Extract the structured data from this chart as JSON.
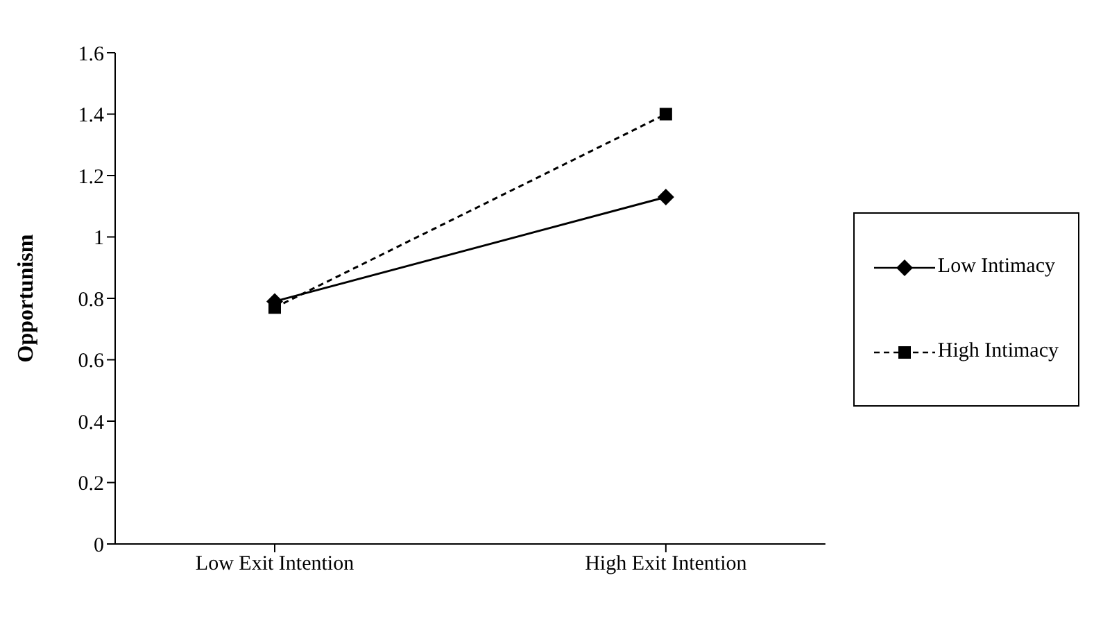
{
  "chart_data": {
    "type": "line",
    "ylabel": "Opportunism",
    "categories": [
      "Low Exit Intention",
      "High Exit Intention"
    ],
    "series": [
      {
        "name": "Low Intimacy",
        "color": "#000000",
        "values": [
          0.79,
          1.13
        ],
        "marker": "diamond",
        "line_style": "solid"
      },
      {
        "name": "High Intimacy",
        "color": "#000000",
        "values": [
          0.77,
          1.4
        ],
        "marker": "square",
        "line_style": "dashed"
      }
    ],
    "ylim": [
      0,
      1.6
    ],
    "yticks": [
      0,
      0.2,
      0.4,
      0.6,
      0.8,
      1,
      1.2,
      1.4,
      1.6
    ],
    "grid": false,
    "legend": "right"
  }
}
